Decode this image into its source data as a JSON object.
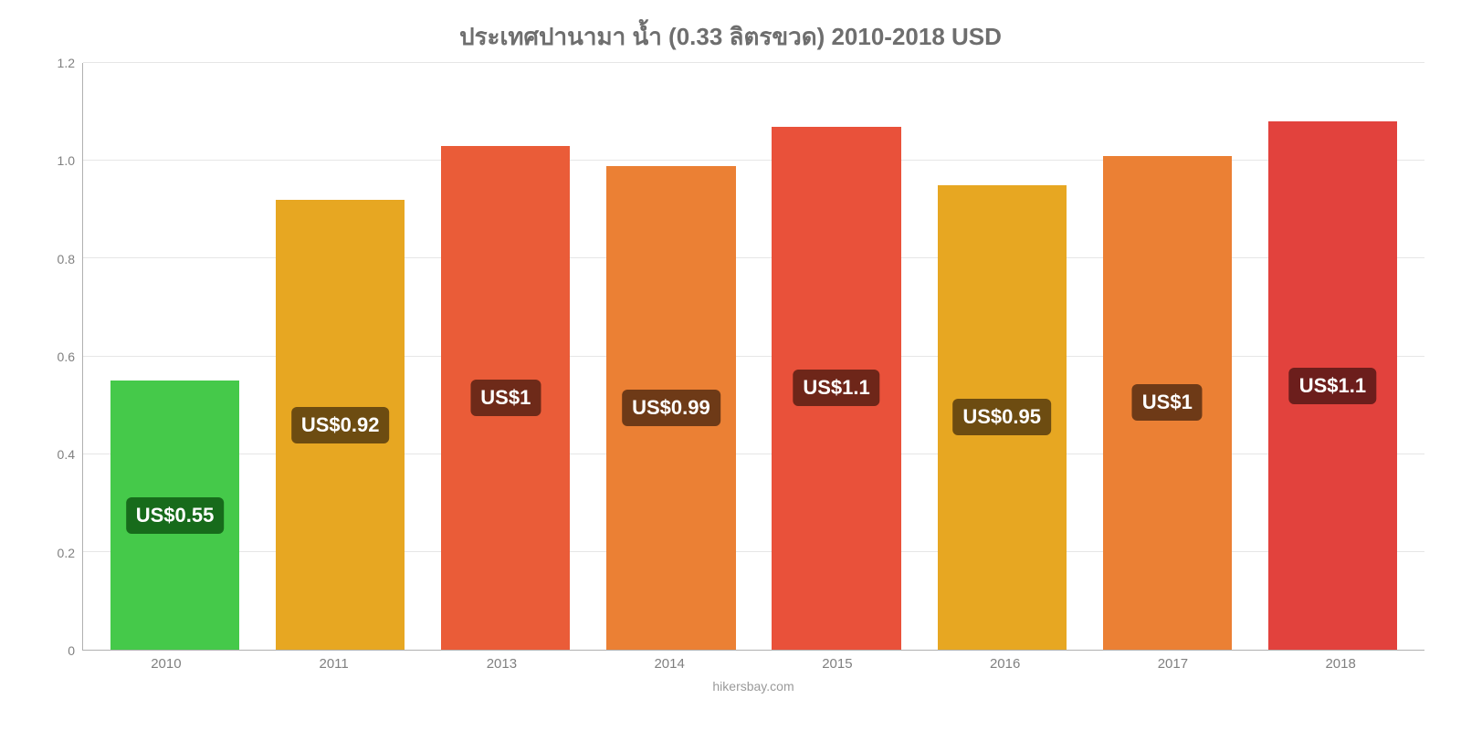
{
  "chart": {
    "type": "bar",
    "title": "ประเทศปานามา น้ำ (0.33 ลิตรขวด) 2010-2018 USD",
    "title_color": "#6e6e6e",
    "title_fontsize": 26,
    "attribution": "hikersbay.com",
    "attribution_color": "#9a9a9a",
    "background_color": "#ffffff",
    "grid_color": "#e6e6e6",
    "axis_color": "#b0b0b0",
    "tick_color": "#808080",
    "tick_fontsize": 14,
    "xtick_fontsize": 15,
    "ylim": [
      0,
      1.2
    ],
    "yticks": [
      0,
      0.2,
      0.4,
      0.6,
      0.8,
      1.0,
      1.2
    ],
    "bar_width_pct": 78,
    "label_fontsize": 22,
    "label_text_color": "#ffffff",
    "categories": [
      "2010",
      "2011",
      "2013",
      "2014",
      "2015",
      "2016",
      "2017",
      "2018"
    ],
    "values": [
      0.55,
      0.92,
      1.03,
      0.99,
      1.07,
      0.95,
      1.01,
      1.08
    ],
    "value_labels": [
      "US$0.55",
      "US$0.92",
      "US$1",
      "US$0.99",
      "US$1.1",
      "US$0.95",
      "US$1",
      "US$1.1"
    ],
    "bar_colors": [
      "#45c94a",
      "#e7a722",
      "#ea5c38",
      "#eb8034",
      "#e9513a",
      "#e7a722",
      "#eb8034",
      "#e2423d"
    ],
    "label_bg_colors": [
      "#176b1b",
      "#6d4c11",
      "#6e2a19",
      "#6e3a17",
      "#6e2619",
      "#6d4c11",
      "#6e3a17",
      "#6c1e1c"
    ]
  }
}
